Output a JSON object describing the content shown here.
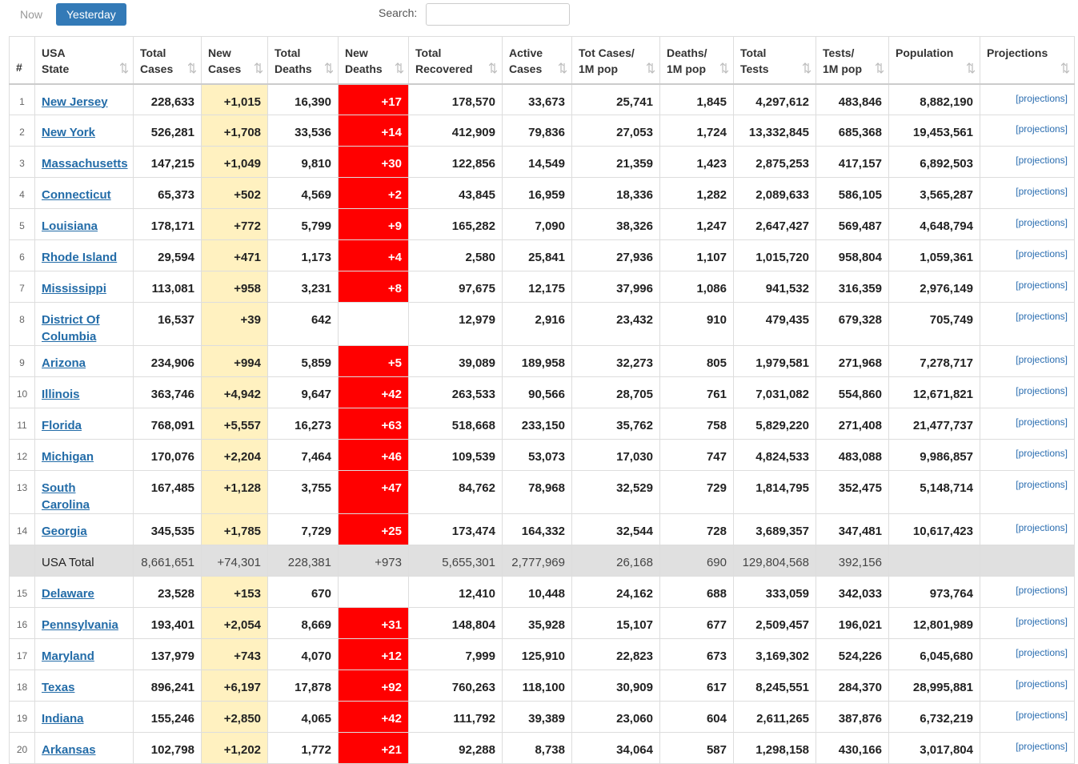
{
  "tabs": [
    "Now",
    "Yesterday"
  ],
  "search_label": "Search:",
  "table": {
    "headers": [
      [
        "#"
      ],
      [
        "USA",
        "State"
      ],
      [
        "Total",
        "Cases"
      ],
      [
        "New",
        "Cases"
      ],
      [
        "Total",
        "Deaths"
      ],
      [
        "New",
        "Deaths"
      ],
      [
        "Total",
        "Recovered"
      ],
      [
        "Active",
        "Cases"
      ],
      [
        "Tot Cases/",
        "1M pop"
      ],
      [
        "Deaths/",
        "1M pop"
      ],
      [
        "Total",
        "Tests"
      ],
      [
        "Tests/",
        "1M pop"
      ],
      [
        "Population"
      ],
      [
        "Projections"
      ]
    ],
    "rows": [
      [
        1,
        "New Jersey",
        "228,633",
        "+1,015",
        "16,390",
        "+17",
        "178,570",
        "33,673",
        "25,741",
        "1,845",
        "4,297,612",
        "483,846",
        "8,882,190",
        "[projections]"
      ],
      [
        2,
        "New York",
        "526,281",
        "+1,708",
        "33,536",
        "+14",
        "412,909",
        "79,836",
        "27,053",
        "1,724",
        "13,332,845",
        "685,368",
        "19,453,561",
        "[projections]"
      ],
      [
        3,
        "Massachusetts",
        "147,215",
        "+1,049",
        "9,810",
        "+30",
        "122,856",
        "14,549",
        "21,359",
        "1,423",
        "2,875,253",
        "417,157",
        "6,892,503",
        "[projections]"
      ],
      [
        4,
        "Connecticut",
        "65,373",
        "+502",
        "4,569",
        "+2",
        "43,845",
        "16,959",
        "18,336",
        "1,282",
        "2,089,633",
        "586,105",
        "3,565,287",
        "[projections]"
      ],
      [
        5,
        "Louisiana",
        "178,171",
        "+772",
        "5,799",
        "+9",
        "165,282",
        "7,090",
        "38,326",
        "1,247",
        "2,647,427",
        "569,487",
        "4,648,794",
        "[projections]"
      ],
      [
        6,
        "Rhode Island",
        "29,594",
        "+471",
        "1,173",
        "+4",
        "2,580",
        "25,841",
        "27,936",
        "1,107",
        "1,015,720",
        "958,804",
        "1,059,361",
        "[projections]"
      ],
      [
        7,
        "Mississippi",
        "113,081",
        "+958",
        "3,231",
        "+8",
        "97,675",
        "12,175",
        "37,996",
        "1,086",
        "941,532",
        "316,359",
        "2,976,149",
        "[projections]"
      ],
      [
        8,
        "District Of Columbia",
        "16,537",
        "+39",
        "642",
        null,
        "12,979",
        "2,916",
        "23,432",
        "910",
        "479,435",
        "679,328",
        "705,749",
        "[projections]"
      ],
      [
        9,
        "Arizona",
        "234,906",
        "+994",
        "5,859",
        "+5",
        "39,089",
        "189,958",
        "32,273",
        "805",
        "1,979,581",
        "271,968",
        "7,278,717",
        "[projections]"
      ],
      [
        10,
        "Illinois",
        "363,746",
        "+4,942",
        "9,647",
        "+42",
        "263,533",
        "90,566",
        "28,705",
        "761",
        "7,031,082",
        "554,860",
        "12,671,821",
        "[projections]"
      ],
      [
        11,
        "Florida",
        "768,091",
        "+5,557",
        "16,273",
        "+63",
        "518,668",
        "233,150",
        "35,762",
        "758",
        "5,829,220",
        "271,408",
        "21,477,737",
        "[projections]"
      ],
      [
        12,
        "Michigan",
        "170,076",
        "+2,204",
        "7,464",
        "+46",
        "109,539",
        "53,073",
        "17,030",
        "747",
        "4,824,533",
        "483,088",
        "9,986,857",
        "[projections]"
      ],
      [
        13,
        "South Carolina",
        "167,485",
        "+1,128",
        "3,755",
        "+47",
        "84,762",
        "78,968",
        "32,529",
        "729",
        "1,814,795",
        "352,475",
        "5,148,714",
        "[projections]"
      ],
      [
        14,
        "Georgia",
        "345,535",
        "+1,785",
        "7,729",
        "+25",
        "173,474",
        "164,332",
        "32,544",
        "728",
        "3,689,357",
        "347,481",
        "10,617,423",
        "[projections]"
      ],
      [
        null,
        "USA Total",
        "8,661,651",
        "+74,301",
        "228,381",
        "+973",
        "5,655,301",
        "2,777,969",
        "26,168",
        "690",
        "129,804,568",
        "392,156",
        null,
        null
      ],
      [
        15,
        "Delaware",
        "23,528",
        "+153",
        "670",
        null,
        "12,410",
        "10,448",
        "24,162",
        "688",
        "333,059",
        "342,033",
        "973,764",
        "[projections]"
      ],
      [
        16,
        "Pennsylvania",
        "193,401",
        "+2,054",
        "8,669",
        "+31",
        "148,804",
        "35,928",
        "15,107",
        "677",
        "2,509,457",
        "196,021",
        "12,801,989",
        "[projections]"
      ],
      [
        17,
        "Maryland",
        "137,979",
        "+743",
        "4,070",
        "+12",
        "7,999",
        "125,910",
        "22,823",
        "673",
        "3,169,302",
        "524,226",
        "6,045,680",
        "[projections]"
      ],
      [
        18,
        "Texas",
        "896,241",
        "+6,197",
        "17,878",
        "+92",
        "760,263",
        "118,100",
        "30,909",
        "617",
        "8,245,551",
        "284,370",
        "28,995,881",
        "[projections]"
      ],
      [
        19,
        "Indiana",
        "155,246",
        "+2,850",
        "4,065",
        "+42",
        "111,792",
        "39,389",
        "23,060",
        "604",
        "2,611,265",
        "387,876",
        "6,732,219",
        "[projections]"
      ],
      [
        20,
        "Arkansas",
        "102,798",
        "+1,202",
        "1,772",
        "+21",
        "92,288",
        "8,738",
        "34,064",
        "587",
        "1,298,158",
        "430,166",
        "3,017,804",
        "[projections]"
      ]
    ]
  }
}
